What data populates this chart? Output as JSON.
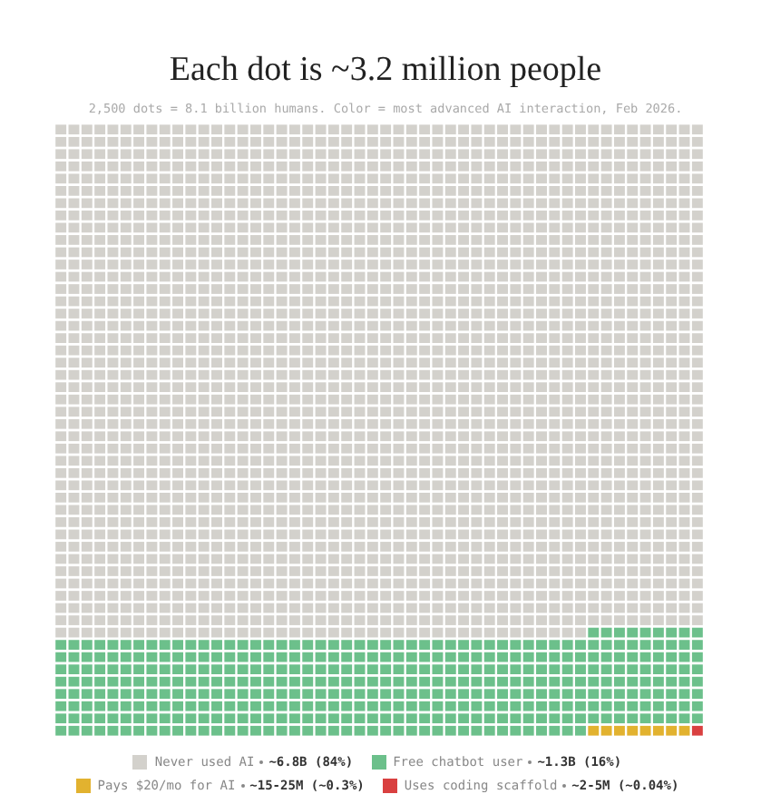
{
  "chart_data": {
    "type": "other",
    "title": "Each dot is ~3.2 million people",
    "subtitle": "2,500 dots = 8.1 billion humans. Color = most advanced AI interaction, Feb 2026.",
    "series": [
      {
        "name": "Never used AI",
        "color": "#d3d1cc",
        "values": [
          84
        ],
        "value_labels": [
          "~6.8B (84%)"
        ]
      },
      {
        "name": "Free chatbot user",
        "color": "#6cc08b",
        "values": [
          16
        ],
        "value_labels": [
          "~1.3B (16%)"
        ]
      },
      {
        "name": "Pays $20/mo for AI",
        "color": "#e2b22f",
        "values": [
          0.3
        ],
        "value_labels": [
          "~15-25M (~0.3%)"
        ]
      },
      {
        "name": "Uses coding scaffold",
        "color": "#d94040",
        "values": [
          0.04
        ],
        "value_labels": [
          "~2-5M (~0.04%)"
        ]
      }
    ],
    "legend": "bottom"
  }
}
